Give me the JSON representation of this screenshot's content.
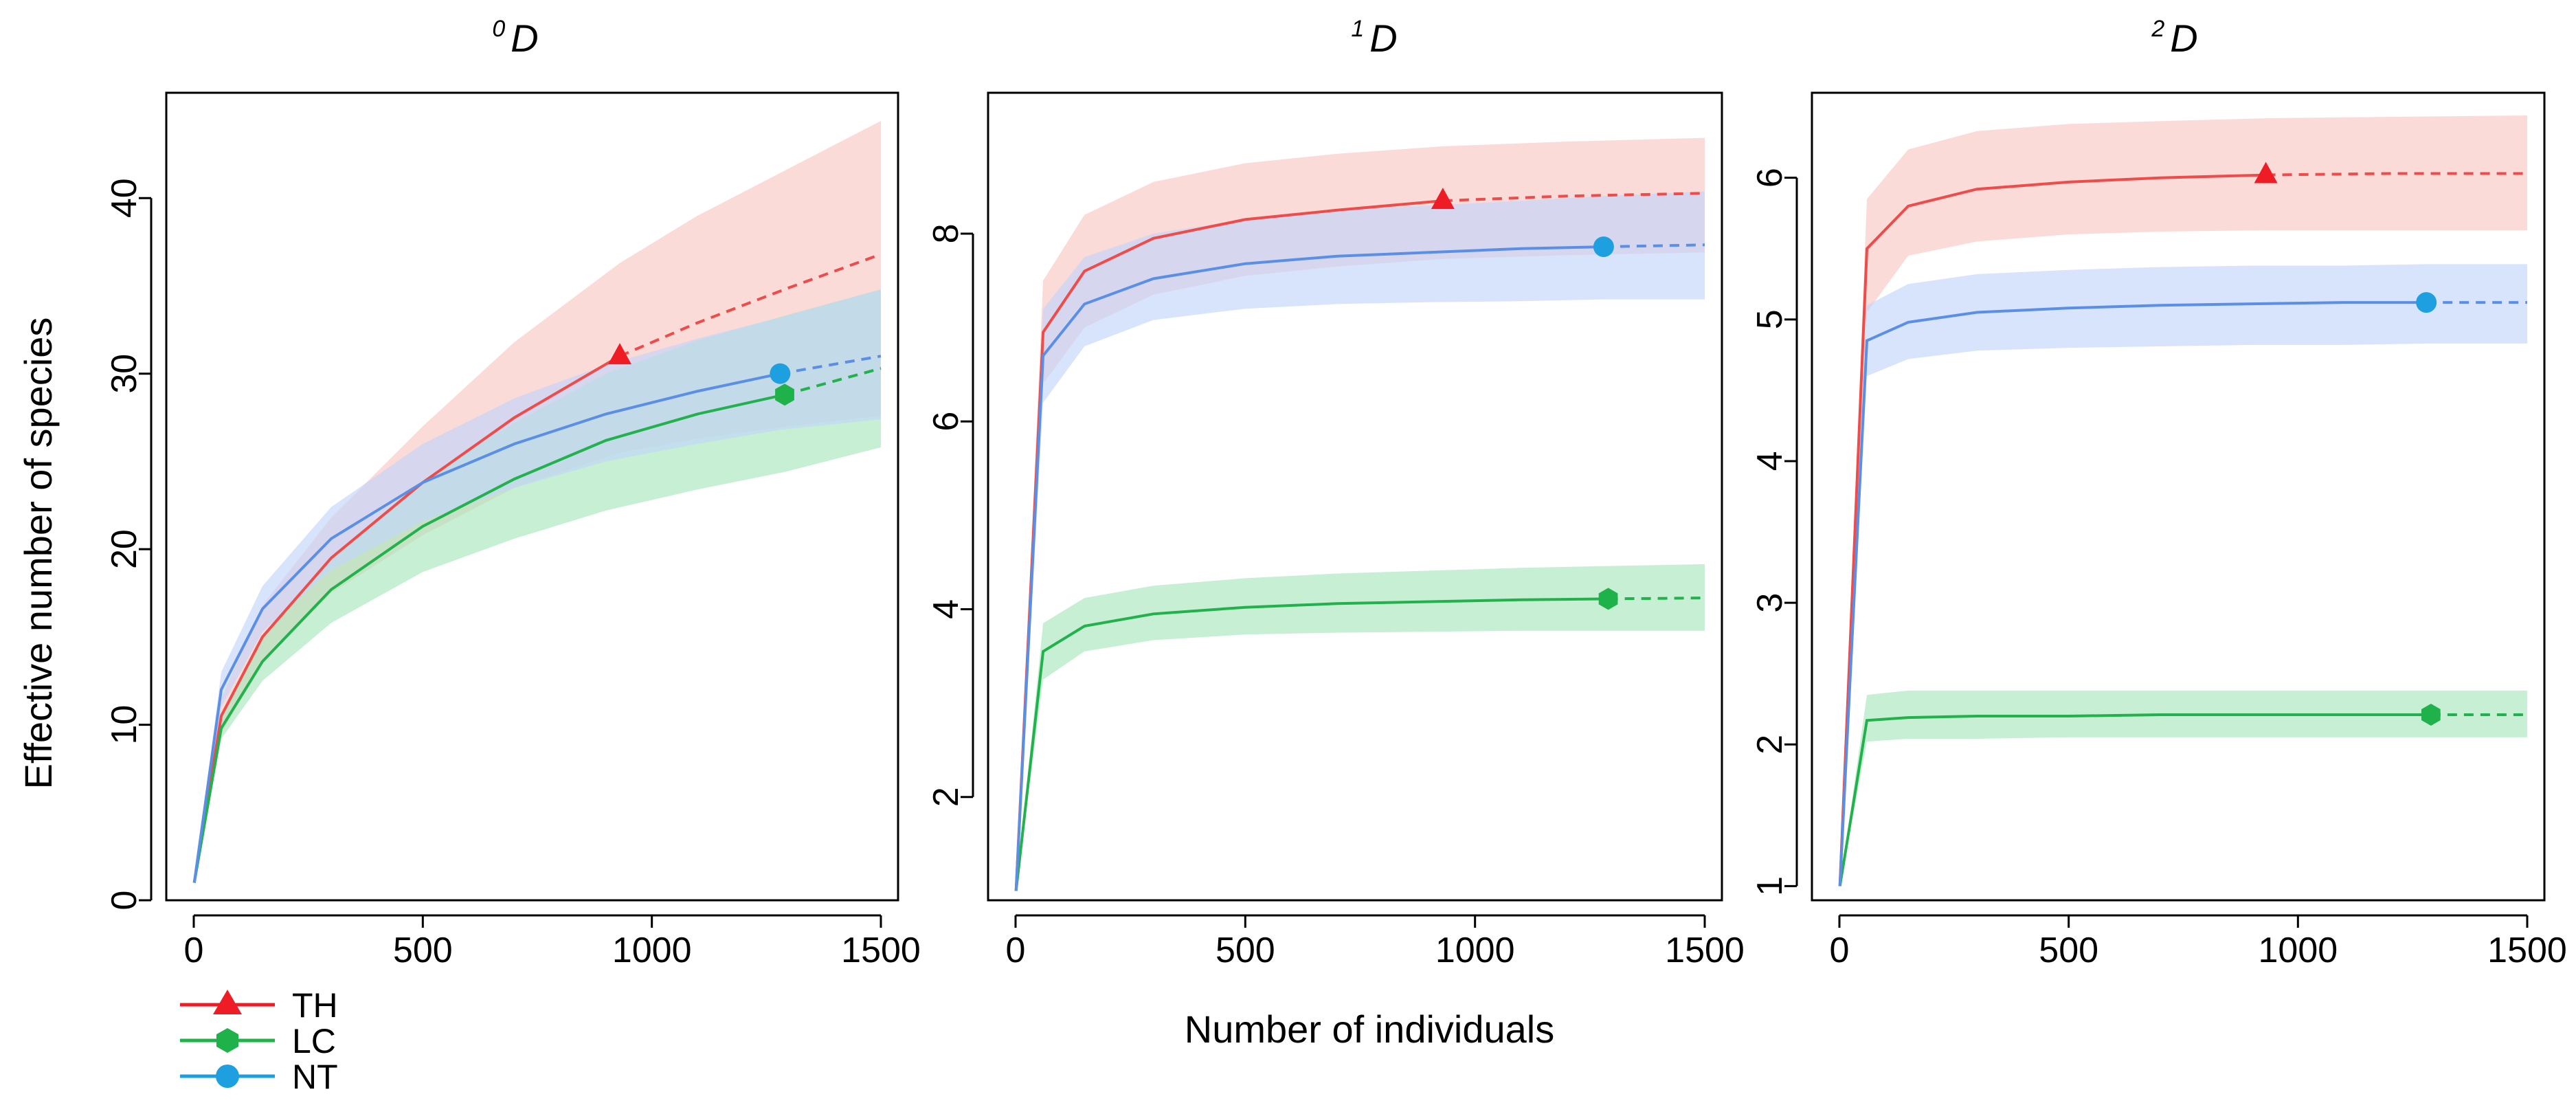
{
  "figure": {
    "ylabel": "Effective number of species",
    "xlabel": "Number of individuals"
  },
  "legend": {
    "items": [
      {
        "label": "TH",
        "color": "#ee1c25",
        "marker": "triangle"
      },
      {
        "label": "LC",
        "color": "#1fb24a",
        "marker": "hexagon"
      },
      {
        "label": "NT",
        "color": "#1e9fe0",
        "marker": "circle"
      }
    ]
  },
  "colors": {
    "TH_line": "#ee4b4b",
    "TH_band": "#f9c7c2",
    "LC_line": "#22b14c",
    "LC_band": "#a9e6bc",
    "NT_line": "#5b8fe6",
    "NT_band": "#c2d6fb"
  },
  "chart_data": [
    {
      "type": "line",
      "title_sup": "0",
      "title_main": "D",
      "xlim": [
        0,
        1500
      ],
      "ylim": [
        0,
        46
      ],
      "xticks": [
        0,
        500,
        1000,
        1500
      ],
      "yticks": [
        0,
        10,
        20,
        30,
        40
      ],
      "series": [
        {
          "name": "TH",
          "n_ref": 930,
          "x": [
            1,
            60,
            150,
            300,
            500,
            700,
            930,
            1100,
            1300,
            1500
          ],
          "y": [
            1,
            10.5,
            15,
            19.5,
            23.8,
            27.5,
            31,
            32.9,
            34.9,
            36.8
          ],
          "lo": [
            1,
            9.5,
            13.5,
            17.5,
            20.8,
            23.5,
            25.5,
            26.3,
            27,
            27.6
          ],
          "hi": [
            1,
            11.5,
            16.8,
            21.8,
            27,
            31.8,
            36.3,
            39,
            41.7,
            44.4
          ]
        },
        {
          "name": "LC",
          "n_ref": 1290,
          "x": [
            1,
            60,
            150,
            300,
            500,
            700,
            900,
            1100,
            1290,
            1500
          ],
          "y": [
            1,
            9.8,
            13.6,
            17.7,
            21.3,
            24,
            26.2,
            27.7,
            28.8,
            30.3
          ],
          "lo": [
            1,
            9.2,
            12.5,
            15.8,
            18.7,
            20.6,
            22.2,
            23.4,
            24.4,
            25.8
          ],
          "hi": [
            1,
            10.4,
            14.8,
            19.6,
            23.9,
            27.2,
            30,
            31.9,
            33.3,
            34.8
          ]
        },
        {
          "name": "NT",
          "n_ref": 1280,
          "x": [
            1,
            60,
            150,
            300,
            500,
            700,
            900,
            1100,
            1280,
            1500
          ],
          "y": [
            1,
            12,
            16.6,
            20.6,
            23.8,
            26,
            27.7,
            29,
            30,
            31
          ],
          "lo": [
            1,
            11,
            15.3,
            18.8,
            21.6,
            23.5,
            25,
            26,
            26.8,
            27.4
          ],
          "hi": [
            1,
            13,
            17.9,
            22.4,
            26,
            28.6,
            30.5,
            32,
            33.2,
            34.8
          ]
        }
      ]
    },
    {
      "type": "line",
      "title_sup": "1",
      "title_main": "D",
      "xlim": [
        0,
        1500
      ],
      "ylim": [
        0.9,
        9.5
      ],
      "xticks": [
        0,
        500,
        1000,
        1500
      ],
      "yticks": [
        2,
        4,
        6,
        8
      ],
      "series": [
        {
          "name": "TH",
          "n_ref": 930,
          "x": [
            1,
            60,
            150,
            300,
            500,
            700,
            930,
            1200,
            1500
          ],
          "y": [
            1,
            6.95,
            7.6,
            7.95,
            8.15,
            8.25,
            8.35,
            8.4,
            8.43
          ],
          "lo": [
            1,
            6.4,
            7.0,
            7.35,
            7.55,
            7.65,
            7.73,
            7.77,
            7.8
          ],
          "hi": [
            1,
            7.5,
            8.2,
            8.55,
            8.75,
            8.85,
            8.93,
            8.98,
            9.02
          ]
        },
        {
          "name": "LC",
          "n_ref": 1290,
          "x": [
            1,
            60,
            150,
            300,
            500,
            700,
            900,
            1100,
            1290,
            1500
          ],
          "y": [
            1,
            3.55,
            3.82,
            3.95,
            4.02,
            4.06,
            4.08,
            4.1,
            4.11,
            4.12
          ],
          "lo": [
            1,
            3.25,
            3.55,
            3.67,
            3.73,
            3.75,
            3.76,
            3.77,
            3.77,
            3.77
          ],
          "hi": [
            1,
            3.85,
            4.12,
            4.25,
            4.33,
            4.38,
            4.41,
            4.44,
            4.46,
            4.48
          ]
        },
        {
          "name": "NT",
          "n_ref": 1280,
          "x": [
            1,
            60,
            150,
            300,
            500,
            700,
            900,
            1100,
            1280,
            1500
          ],
          "y": [
            1,
            6.7,
            7.25,
            7.52,
            7.68,
            7.76,
            7.8,
            7.84,
            7.86,
            7.88
          ],
          "lo": [
            1,
            6.2,
            6.8,
            7.08,
            7.2,
            7.25,
            7.27,
            7.28,
            7.3,
            7.3
          ],
          "hi": [
            1,
            7.2,
            7.75,
            8.0,
            8.15,
            8.25,
            8.3,
            8.35,
            8.4,
            8.45
          ]
        }
      ]
    },
    {
      "type": "line",
      "title_sup": "2",
      "title_main": "D",
      "xlim": [
        0,
        1500
      ],
      "ylim": [
        0.9,
        6.6
      ],
      "xticks": [
        0,
        500,
        1000,
        1500
      ],
      "yticks": [
        1,
        2,
        3,
        4,
        5,
        6
      ],
      "series": [
        {
          "name": "TH",
          "n_ref": 930,
          "x": [
            1,
            60,
            150,
            300,
            500,
            700,
            930,
            1200,
            1500
          ],
          "y": [
            1,
            5.5,
            5.8,
            5.92,
            5.97,
            6.0,
            6.02,
            6.03,
            6.03
          ],
          "lo": [
            1,
            5.05,
            5.45,
            5.55,
            5.6,
            5.62,
            5.63,
            5.63,
            5.63
          ],
          "hi": [
            1,
            5.85,
            6.2,
            6.33,
            6.38,
            6.4,
            6.42,
            6.43,
            6.44
          ]
        },
        {
          "name": "LC",
          "n_ref": 1290,
          "x": [
            1,
            60,
            150,
            300,
            500,
            700,
            900,
            1100,
            1290,
            1500
          ],
          "y": [
            1,
            2.17,
            2.19,
            2.2,
            2.2,
            2.21,
            2.21,
            2.21,
            2.21,
            2.21
          ],
          "lo": [
            1,
            2.02,
            2.04,
            2.04,
            2.05,
            2.05,
            2.05,
            2.05,
            2.05,
            2.05
          ],
          "hi": [
            1,
            2.35,
            2.38,
            2.38,
            2.38,
            2.38,
            2.38,
            2.38,
            2.38,
            2.38
          ]
        },
        {
          "name": "NT",
          "n_ref": 1280,
          "x": [
            1,
            60,
            150,
            300,
            500,
            700,
            900,
            1100,
            1280,
            1500
          ],
          "y": [
            1,
            4.85,
            4.98,
            5.05,
            5.08,
            5.1,
            5.11,
            5.12,
            5.12,
            5.12
          ],
          "lo": [
            1,
            4.6,
            4.72,
            4.78,
            4.8,
            4.81,
            4.82,
            4.82,
            4.83,
            4.83
          ],
          "hi": [
            1,
            5.1,
            5.25,
            5.32,
            5.35,
            5.37,
            5.38,
            5.38,
            5.39,
            5.39
          ]
        }
      ]
    }
  ]
}
